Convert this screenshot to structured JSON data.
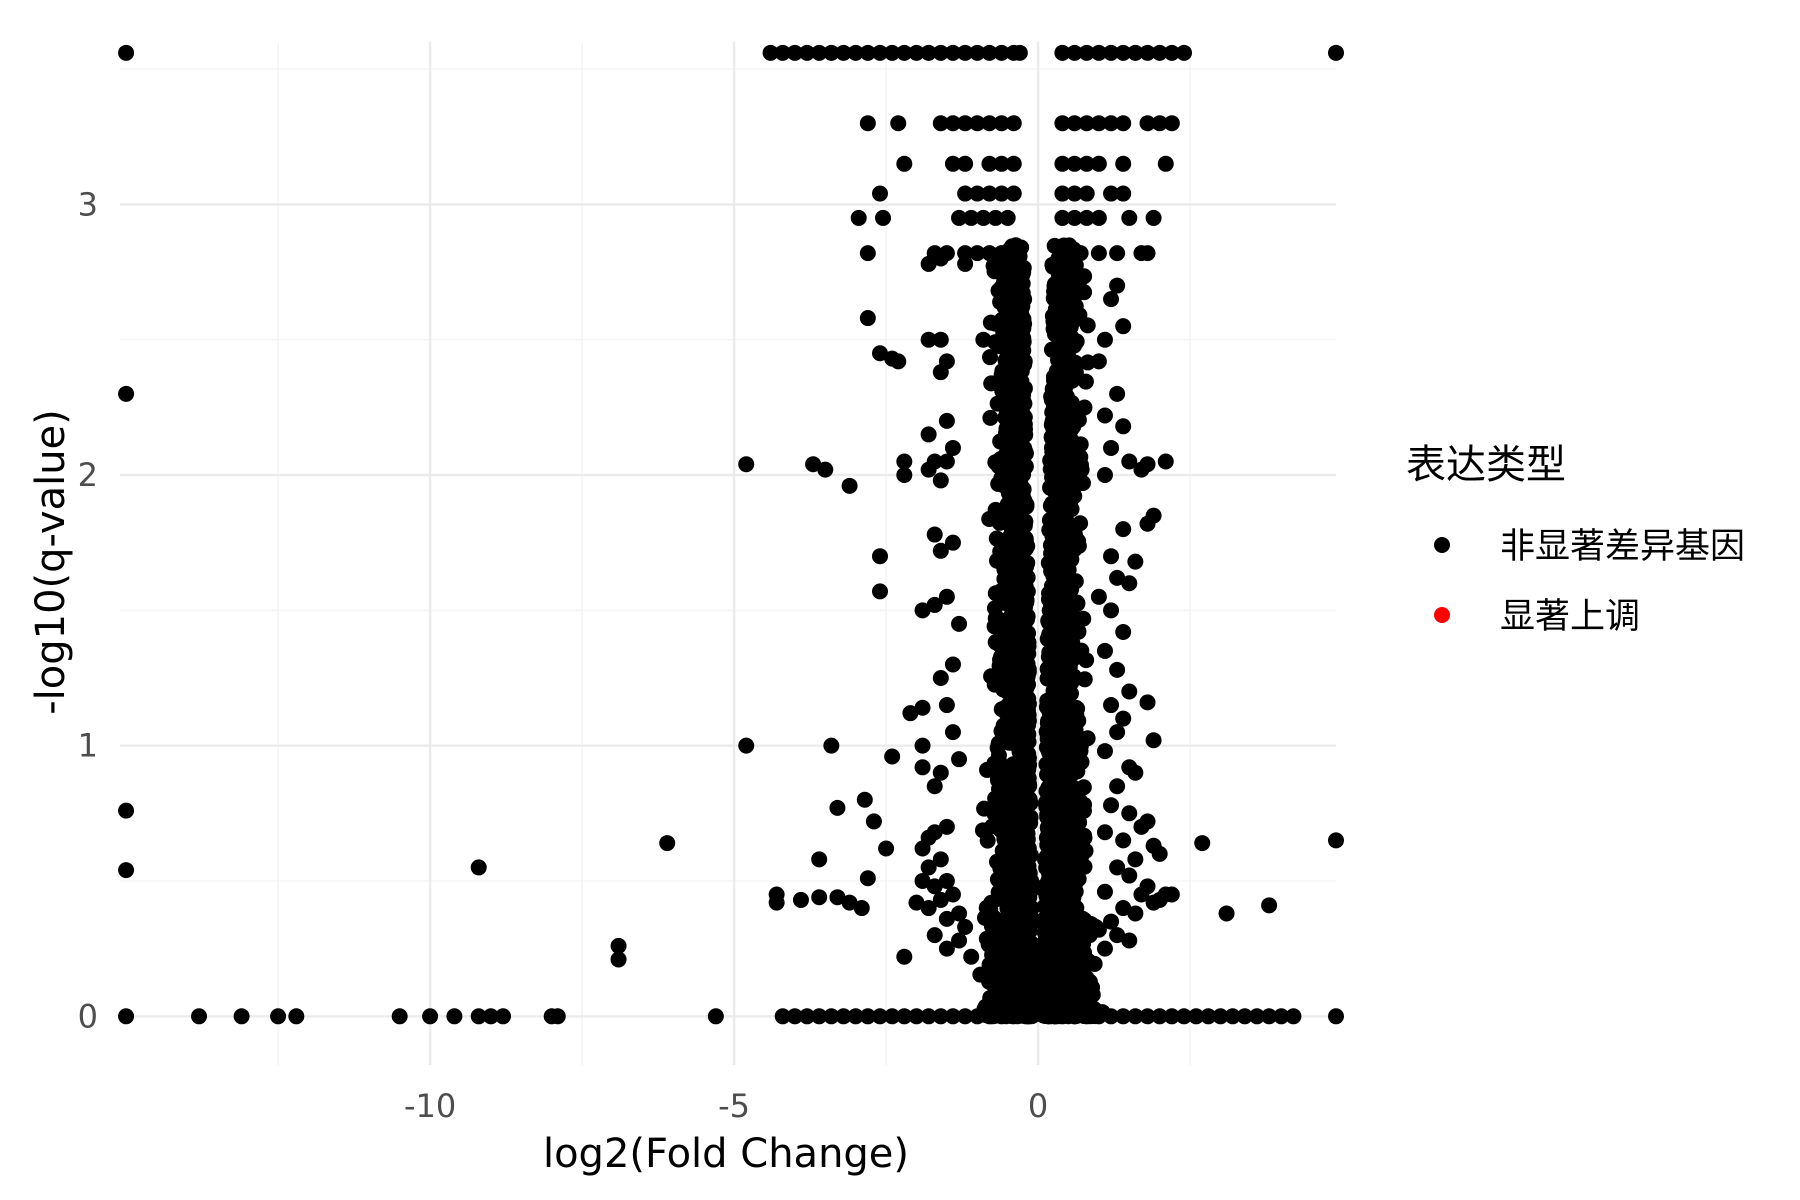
{
  "chart_data": {
    "type": "scatter",
    "title": "",
    "xlabel": "log2(Fold Change)",
    "ylabel": "-log10(q-value)",
    "xlim": [
      -15.1,
      4.9
    ],
    "ylim": [
      -0.18,
      3.6
    ],
    "xticks": [
      -10,
      -5,
      0
    ],
    "yticks": [
      0,
      1,
      2,
      3
    ],
    "grid": true,
    "legend": {
      "title": "表达类型",
      "position": "right",
      "entries": [
        {
          "label": "非显著差异基因",
          "color": "#000000"
        },
        {
          "label": "显著上调",
          "color": "#ff0000"
        }
      ]
    },
    "series": [
      {
        "name": "非显著差异基因",
        "color": "#000000",
        "points": [
          [
            -15.0,
            3.56
          ],
          [
            -15.0,
            2.3
          ],
          [
            -15.0,
            0.76
          ],
          [
            -15.0,
            0.54
          ],
          [
            -15.0,
            0.0
          ],
          [
            4.9,
            3.56
          ],
          [
            4.9,
            0.65
          ],
          [
            4.9,
            0.0
          ],
          [
            -13.8,
            0.0
          ],
          [
            -13.1,
            0.0
          ],
          [
            -12.5,
            0.0
          ],
          [
            -12.2,
            0.0
          ],
          [
            -10.5,
            0.0
          ],
          [
            -10.0,
            0.0
          ],
          [
            -9.6,
            0.0
          ],
          [
            -9.2,
            0.0
          ],
          [
            -9.0,
            0.0
          ],
          [
            -8.8,
            0.0
          ],
          [
            -8.0,
            0.0
          ],
          [
            -7.9,
            0.0
          ],
          [
            -5.3,
            0.0
          ],
          [
            -9.2,
            0.55
          ],
          [
            -6.9,
            0.26
          ],
          [
            -6.9,
            0.21
          ],
          [
            -6.1,
            0.64
          ],
          [
            -4.8,
            2.04
          ],
          [
            -4.8,
            1.0
          ],
          [
            -3.7,
            2.04
          ],
          [
            -3.5,
            2.02
          ],
          [
            -3.1,
            1.96
          ],
          [
            -3.4,
            1.0
          ],
          [
            -3.6,
            0.58
          ],
          [
            -3.3,
            0.77
          ],
          [
            -2.85,
            0.8
          ],
          [
            -2.7,
            0.72
          ],
          [
            -2.5,
            0.62
          ],
          [
            -2.8,
            0.51
          ],
          [
            -2.8,
            2.58
          ],
          [
            -2.4,
            2.43
          ],
          [
            -2.6,
            2.45
          ],
          [
            -2.8,
            2.82
          ],
          [
            -2.95,
            2.95
          ],
          [
            -2.55,
            2.95
          ],
          [
            -2.6,
            3.04
          ],
          [
            -2.3,
            2.42
          ],
          [
            -2.2,
            3.15
          ],
          [
            -2.2,
            2.05
          ],
          [
            -2.2,
            2.0
          ],
          [
            -2.6,
            1.7
          ],
          [
            -2.6,
            1.57
          ],
          [
            -2.1,
            1.12
          ],
          [
            -1.9,
            1.14
          ],
          [
            -1.9,
            1.0
          ],
          [
            -2.4,
            0.96
          ],
          [
            -1.9,
            0.92
          ],
          [
            -2.2,
            0.22
          ],
          [
            -4.3,
            0.45
          ],
          [
            -4.3,
            0.42
          ],
          [
            -3.9,
            0.43
          ],
          [
            -3.6,
            0.44
          ],
          [
            -3.3,
            0.44
          ],
          [
            -3.1,
            0.42
          ],
          [
            -2.9,
            0.4
          ],
          [
            -4.4,
            3.56
          ],
          [
            -4.2,
            3.56
          ],
          [
            -4.0,
            3.56
          ],
          [
            -3.8,
            3.56
          ],
          [
            -3.6,
            3.56
          ],
          [
            -3.4,
            3.56
          ],
          [
            -3.2,
            3.56
          ],
          [
            -3.0,
            3.56
          ],
          [
            -2.8,
            3.56
          ],
          [
            -2.6,
            3.56
          ],
          [
            -2.4,
            3.56
          ],
          [
            -2.2,
            3.56
          ],
          [
            -2.0,
            3.56
          ],
          [
            -1.8,
            3.56
          ],
          [
            -1.6,
            3.56
          ],
          [
            -1.4,
            3.56
          ],
          [
            -1.2,
            3.56
          ],
          [
            -1.0,
            3.56
          ],
          [
            -0.8,
            3.56
          ],
          [
            -0.6,
            3.56
          ],
          [
            -0.4,
            3.56
          ],
          [
            -0.3,
            3.56
          ],
          [
            0.4,
            3.56
          ],
          [
            0.6,
            3.56
          ],
          [
            0.8,
            3.56
          ],
          [
            1.0,
            3.56
          ],
          [
            1.2,
            3.56
          ],
          [
            1.4,
            3.56
          ],
          [
            1.6,
            3.56
          ],
          [
            1.8,
            3.56
          ],
          [
            2.0,
            3.56
          ],
          [
            2.2,
            3.56
          ],
          [
            2.4,
            3.56
          ],
          [
            -2.8,
            3.3
          ],
          [
            -2.3,
            3.3
          ],
          [
            -1.6,
            3.3
          ],
          [
            -1.4,
            3.3
          ],
          [
            -1.2,
            3.3
          ],
          [
            -1.0,
            3.3
          ],
          [
            -0.8,
            3.3
          ],
          [
            -0.6,
            3.3
          ],
          [
            -0.4,
            3.3
          ],
          [
            0.4,
            3.3
          ],
          [
            0.6,
            3.3
          ],
          [
            0.8,
            3.3
          ],
          [
            1.0,
            3.3
          ],
          [
            1.2,
            3.3
          ],
          [
            1.4,
            3.3
          ],
          [
            1.8,
            3.3
          ],
          [
            2.0,
            3.3
          ],
          [
            2.2,
            3.3
          ],
          [
            -1.4,
            3.15
          ],
          [
            -1.2,
            3.15
          ],
          [
            -0.8,
            3.15
          ],
          [
            -0.6,
            3.15
          ],
          [
            -0.4,
            3.15
          ],
          [
            0.4,
            3.15
          ],
          [
            0.6,
            3.15
          ],
          [
            0.8,
            3.15
          ],
          [
            1.0,
            3.15
          ],
          [
            1.4,
            3.15
          ],
          [
            2.1,
            3.15
          ],
          [
            -1.2,
            3.04
          ],
          [
            -1.0,
            3.04
          ],
          [
            -0.8,
            3.04
          ],
          [
            -0.6,
            3.04
          ],
          [
            -0.4,
            3.04
          ],
          [
            0.4,
            3.04
          ],
          [
            0.6,
            3.04
          ],
          [
            0.8,
            3.04
          ],
          [
            1.2,
            3.04
          ],
          [
            1.4,
            3.04
          ],
          [
            -1.3,
            2.95
          ],
          [
            -1.1,
            2.95
          ],
          [
            -0.9,
            2.95
          ],
          [
            -0.7,
            2.95
          ],
          [
            -0.5,
            2.95
          ],
          [
            0.4,
            2.95
          ],
          [
            0.6,
            2.95
          ],
          [
            0.8,
            2.95
          ],
          [
            1.0,
            2.95
          ],
          [
            1.5,
            2.95
          ],
          [
            1.9,
            2.95
          ],
          [
            -1.7,
            2.82
          ],
          [
            -1.5,
            2.82
          ],
          [
            -1.2,
            2.82
          ],
          [
            -1.0,
            2.82
          ],
          [
            -0.8,
            2.82
          ],
          [
            -0.6,
            2.82
          ],
          [
            0.4,
            2.82
          ],
          [
            0.7,
            2.82
          ],
          [
            1.0,
            2.82
          ],
          [
            1.3,
            2.82
          ],
          [
            1.7,
            2.82
          ],
          [
            1.8,
            2.82
          ],
          [
            -1.8,
            2.78
          ],
          [
            -1.6,
            2.8
          ],
          [
            -1.2,
            2.78
          ],
          [
            -0.9,
            2.5
          ],
          [
            -1.8,
            2.5
          ],
          [
            -1.6,
            2.5
          ],
          [
            -1.5,
            2.42
          ],
          [
            -1.6,
            2.38
          ],
          [
            -1.5,
            2.2
          ],
          [
            -1.4,
            2.1
          ],
          [
            -1.5,
            2.05
          ],
          [
            -1.8,
            2.15
          ],
          [
            -1.7,
            2.05
          ],
          [
            -1.8,
            2.02
          ],
          [
            -1.6,
            1.98
          ],
          [
            -1.7,
            1.78
          ],
          [
            -1.6,
            1.72
          ],
          [
            -1.4,
            1.75
          ],
          [
            -1.5,
            1.55
          ],
          [
            -1.7,
            1.52
          ],
          [
            -1.9,
            1.5
          ],
          [
            -1.3,
            1.45
          ],
          [
            -1.4,
            1.3
          ],
          [
            -1.6,
            1.25
          ],
          [
            -1.5,
            1.15
          ],
          [
            -1.4,
            1.05
          ],
          [
            -1.3,
            0.95
          ],
          [
            -1.6,
            0.9
          ],
          [
            -1.7,
            0.85
          ],
          [
            -1.5,
            0.7
          ],
          [
            -1.7,
            0.68
          ],
          [
            -1.8,
            0.66
          ],
          [
            -1.9,
            0.62
          ],
          [
            -1.6,
            0.58
          ],
          [
            -1.8,
            0.55
          ],
          [
            -1.5,
            0.5
          ],
          [
            -1.9,
            0.5
          ],
          [
            -1.7,
            0.48
          ],
          [
            -1.4,
            0.45
          ],
          [
            -1.6,
            0.43
          ],
          [
            -2.0,
            0.42
          ],
          [
            -1.8,
            0.4
          ],
          [
            -1.3,
            0.38
          ],
          [
            -1.5,
            0.36
          ],
          [
            -1.2,
            0.33
          ],
          [
            -1.7,
            0.3
          ],
          [
            -1.3,
            0.28
          ],
          [
            -1.5,
            0.25
          ],
          [
            -1.1,
            0.22
          ],
          [
            1.3,
            2.7
          ],
          [
            1.2,
            2.65
          ],
          [
            1.4,
            2.55
          ],
          [
            1.1,
            2.5
          ],
          [
            1.0,
            2.42
          ],
          [
            1.3,
            2.3
          ],
          [
            1.1,
            2.22
          ],
          [
            1.4,
            2.18
          ],
          [
            1.2,
            2.1
          ],
          [
            1.5,
            2.05
          ],
          [
            1.1,
            2.0
          ],
          [
            1.7,
            2.02
          ],
          [
            1.8,
            2.04
          ],
          [
            2.1,
            2.05
          ],
          [
            1.9,
            1.85
          ],
          [
            1.8,
            1.82
          ],
          [
            1.4,
            1.8
          ],
          [
            1.2,
            1.7
          ],
          [
            1.6,
            1.68
          ],
          [
            1.3,
            1.62
          ],
          [
            1.5,
            1.6
          ],
          [
            1.0,
            1.55
          ],
          [
            1.2,
            1.5
          ],
          [
            1.4,
            1.42
          ],
          [
            1.1,
            1.35
          ],
          [
            1.3,
            1.28
          ],
          [
            1.5,
            1.2
          ],
          [
            1.2,
            1.15
          ],
          [
            1.8,
            1.16
          ],
          [
            1.4,
            1.1
          ],
          [
            1.3,
            1.05
          ],
          [
            1.9,
            1.02
          ],
          [
            1.1,
            0.98
          ],
          [
            1.5,
            0.92
          ],
          [
            1.6,
            0.9
          ],
          [
            1.3,
            0.85
          ],
          [
            1.2,
            0.78
          ],
          [
            1.5,
            0.75
          ],
          [
            1.8,
            0.72
          ],
          [
            1.7,
            0.7
          ],
          [
            1.1,
            0.68
          ],
          [
            1.4,
            0.65
          ],
          [
            1.9,
            0.63
          ],
          [
            2.0,
            0.6
          ],
          [
            1.6,
            0.58
          ],
          [
            1.3,
            0.55
          ],
          [
            1.5,
            0.52
          ],
          [
            1.8,
            0.48
          ],
          [
            1.1,
            0.46
          ],
          [
            1.7,
            0.45
          ],
          [
            2.1,
            0.45
          ],
          [
            1.9,
            0.42
          ],
          [
            1.4,
            0.4
          ],
          [
            1.6,
            0.38
          ],
          [
            1.2,
            0.35
          ],
          [
            1.0,
            0.32
          ],
          [
            1.3,
            0.3
          ],
          [
            1.5,
            0.28
          ],
          [
            1.1,
            0.25
          ],
          [
            2.7,
            0.64
          ],
          [
            3.1,
            0.38
          ],
          [
            3.8,
            0.41
          ],
          [
            2.2,
            0.45
          ],
          [
            2.0,
            0.43
          ],
          [
            -4.2,
            0.0
          ],
          [
            -4.0,
            0.0
          ],
          [
            -3.8,
            0.0
          ],
          [
            -3.6,
            0.0
          ],
          [
            -3.4,
            0.0
          ],
          [
            -3.2,
            0.0
          ],
          [
            -3.0,
            0.0
          ],
          [
            -2.8,
            0.0
          ],
          [
            -2.6,
            0.0
          ],
          [
            -2.4,
            0.0
          ],
          [
            -2.2,
            0.0
          ],
          [
            -2.0,
            0.0
          ],
          [
            -1.8,
            0.0
          ],
          [
            -1.6,
            0.0
          ],
          [
            -1.4,
            0.0
          ],
          [
            -1.2,
            0.0
          ],
          [
            -1.0,
            0.0
          ],
          [
            -0.8,
            0.0
          ],
          [
            -0.6,
            0.0
          ],
          [
            -0.4,
            0.0
          ],
          [
            -0.2,
            0.0
          ],
          [
            0.2,
            0.0
          ],
          [
            0.4,
            0.0
          ],
          [
            0.6,
            0.0
          ],
          [
            0.8,
            0.0
          ],
          [
            1.0,
            0.0
          ],
          [
            1.2,
            0.0
          ],
          [
            1.4,
            0.0
          ],
          [
            1.6,
            0.0
          ],
          [
            1.8,
            0.0
          ],
          [
            2.0,
            0.0
          ],
          [
            2.2,
            0.0
          ],
          [
            2.4,
            0.0
          ],
          [
            2.6,
            0.0
          ],
          [
            2.8,
            0.0
          ],
          [
            3.0,
            0.0
          ],
          [
            3.2,
            0.0
          ],
          [
            3.4,
            0.0
          ],
          [
            3.6,
            0.0
          ],
          [
            3.8,
            0.0
          ],
          [
            4.0,
            0.0
          ],
          [
            4.2,
            0.0
          ]
        ]
      },
      {
        "name": "显著上调",
        "color": "#ff0000",
        "points": []
      }
    ]
  }
}
